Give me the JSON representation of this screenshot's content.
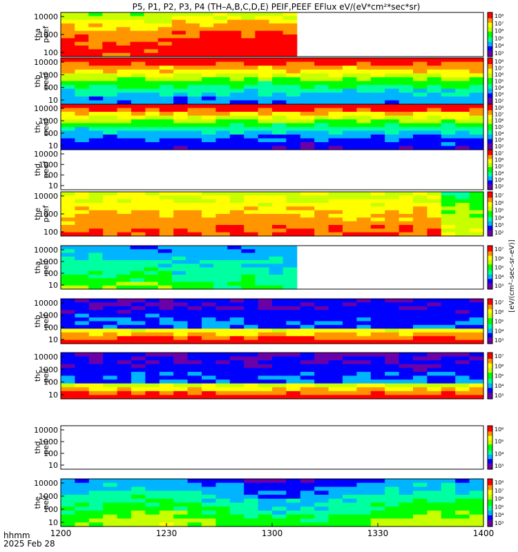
{
  "title": "P5, P1, P2, P3, P4 (TH–A,B,C,D,E) PEIF,PEEF EFlux eV/(eV*cm²*sec*sr)",
  "footer": {
    "time_label": "hhmm",
    "date_label": "2025 Feb 28"
  },
  "colorbar_unit": "[eV/(cm²–sec–sr–eV)]",
  "colors": {
    "rainbow": [
      "#6a00a8",
      "#0000ff",
      "#00b4ff",
      "#00ffa0",
      "#00ff00",
      "#c8ff00",
      "#ffff00",
      "#ff9600",
      "#ff0000"
    ]
  },
  "chart_data": {
    "type": "heatmap",
    "x_ticks": [
      "1200",
      "1230",
      "1300",
      "1330",
      "1400"
    ],
    "y_scale": "log",
    "panels": [
      {
        "label": "tha peef",
        "y_ticks": [
          "10000",
          "1000",
          "100"
        ],
        "cbar_ticks": [
          "10⁸",
          "10⁷",
          "10⁶",
          "10⁵",
          "10⁴",
          "10³"
        ],
        "data_end": "13:07"
      },
      {
        "label": "thb peef",
        "y_ticks": [
          "10000",
          "1000",
          "100",
          "10"
        ],
        "cbar_ticks": [
          "10⁸",
          "10⁷",
          "10⁶",
          "10⁵",
          "10⁴",
          "10³",
          "10²"
        ],
        "data_end": "14:00"
      },
      {
        "label": "thc peef",
        "y_ticks": [
          "10000",
          "1000",
          "100",
          "10"
        ],
        "cbar_ticks": [
          "10⁸",
          "10⁷",
          "10⁶",
          "10⁵",
          "10⁴",
          "10³",
          "10²"
        ],
        "data_end": "14:00"
      },
      {
        "label": "thd peef",
        "y_ticks": [
          "10000",
          "1000",
          "100",
          "10"
        ],
        "cbar_ticks": [
          "10⁷",
          "10⁶",
          "10⁵",
          "10⁴",
          "10³",
          "10²"
        ],
        "data_end": "none"
      },
      {
        "label": "the peef",
        "y_ticks": [
          "10000",
          "1000",
          "100"
        ],
        "cbar_ticks": [
          "10⁷",
          "10⁶",
          "10⁵",
          "10⁴",
          "10³",
          "10²"
        ],
        "data_end": "14:00"
      },
      {
        "label": "tha peif",
        "y_ticks": [
          "10000",
          "1000",
          "100",
          "10"
        ],
        "cbar_ticks": [
          "10⁷",
          "10⁶",
          "10⁵",
          "10⁴",
          "10³"
        ],
        "data_end": "13:07"
      },
      {
        "label": "thb peif",
        "y_ticks": [
          "10000",
          "1000",
          "100",
          "10"
        ],
        "cbar_ticks": [
          "10⁷",
          "10⁶",
          "10⁵",
          "10⁴",
          "10³"
        ],
        "data_end": "14:00"
      },
      {
        "label": "thc peif",
        "y_ticks": [
          "10000",
          "1000",
          "100",
          "10"
        ],
        "cbar_ticks": [
          "10⁷",
          "10⁶",
          "10⁵",
          "10⁴",
          "10³"
        ],
        "data_end": "14:00"
      },
      {
        "label": "thd peif",
        "y_ticks": [
          "10000",
          "1000",
          "100",
          "10"
        ],
        "cbar_ticks": [
          "10⁶",
          "10⁵",
          "10⁴",
          "10³"
        ],
        "data_end": "none"
      },
      {
        "label": "the peif",
        "y_ticks": [
          "10000",
          "1000",
          "100",
          "10"
        ],
        "cbar_ticks": [
          "10⁸",
          "10⁷",
          "10⁶",
          "10⁵",
          "10⁴",
          "10³"
        ],
        "data_end": "14:00"
      }
    ]
  }
}
